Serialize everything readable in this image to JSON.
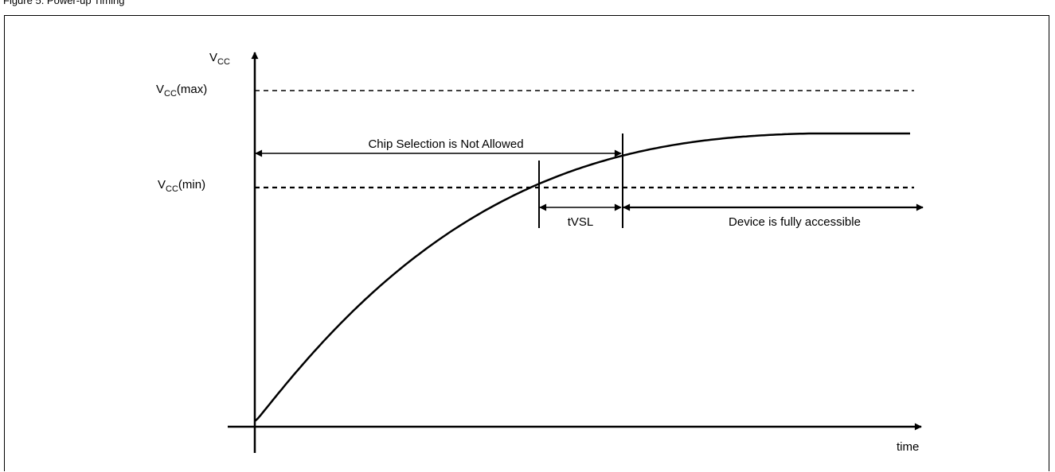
{
  "header": {
    "caption": "Figure 5. Power-up Timing"
  },
  "diagram": {
    "y_axis": {
      "main": "V",
      "sub": "CC"
    },
    "vcc_max": {
      "main": "V",
      "sub": "CC",
      "suffix": "(max)"
    },
    "vcc_min": {
      "main": "V",
      "sub": "CC",
      "suffix": "(min)"
    },
    "x_axis_label": "time",
    "chip_selection_label": "Chip Selection is Not Allowed",
    "tvsl_label": "tVSL",
    "device_accessible_label": "Device is fully accessible",
    "line_color": "#000000",
    "background": "#ffffff"
  }
}
